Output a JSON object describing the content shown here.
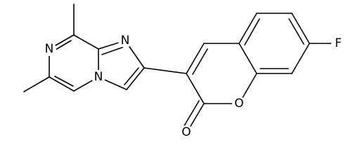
{
  "atoms": [
    {
      "label": "N"
    },
    {
      "label": "N"
    },
    {
      "label": "N"
    },
    {
      "label": "O"
    },
    {
      "label": "O"
    },
    {
      "label": "F"
    }
  ]
}
